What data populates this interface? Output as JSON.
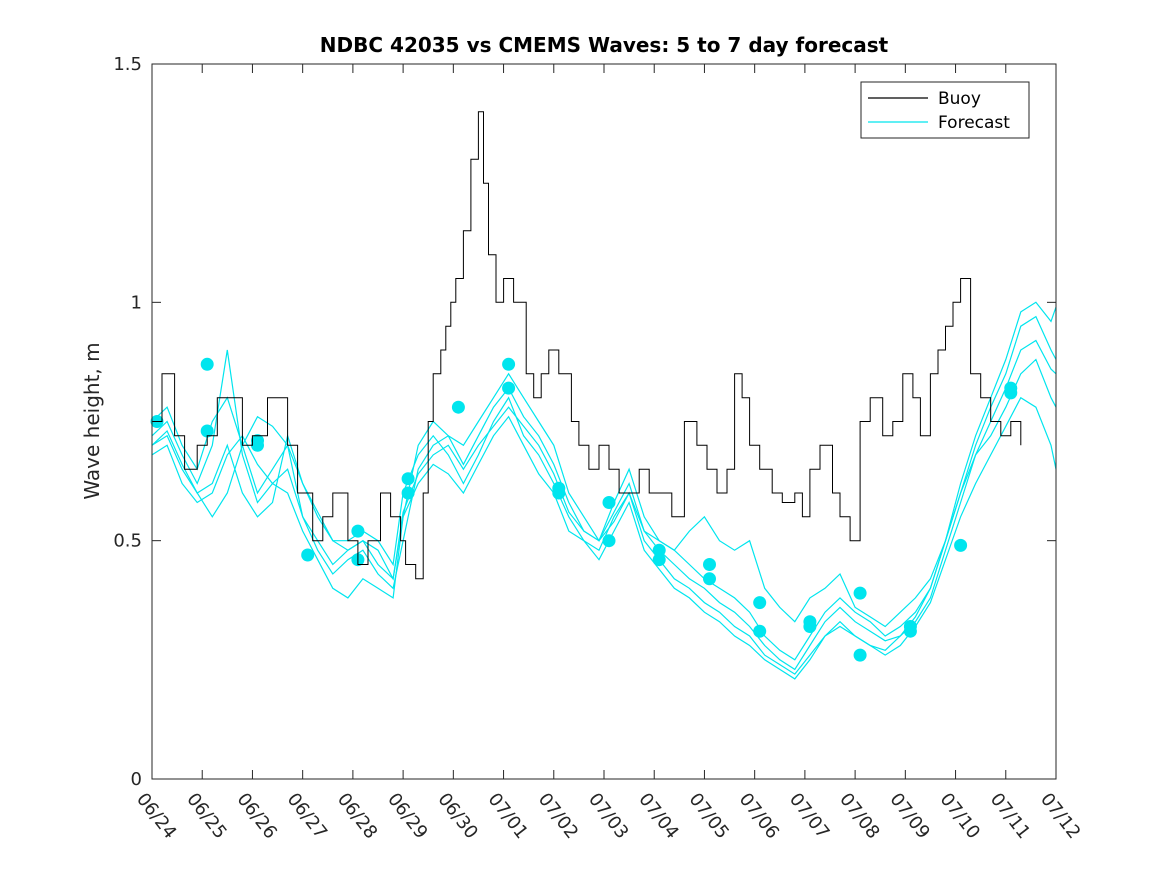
{
  "colors": {
    "buoy": "#000000",
    "forecast": "#00e5ee",
    "axis": "#262626",
    "background": "#ffffff"
  },
  "chart_data": {
    "type": "line",
    "title": "NDBC 42035 vs CMEMS Waves: 5 to 7 day forecast",
    "xlabel": "",
    "ylabel": "Wave height, m",
    "x_unit": "day (0 = 06/24)",
    "xlim": [
      0,
      18
    ],
    "ylim": [
      0,
      1.5
    ],
    "x_ticks": [
      0,
      1,
      2,
      3,
      4,
      5,
      6,
      7,
      8,
      9,
      10,
      11,
      12,
      13,
      14,
      15,
      16,
      17,
      18
    ],
    "x_tick_labels": [
      "06/24",
      "06/25",
      "06/26",
      "06/27",
      "06/28",
      "06/29",
      "06/30",
      "07/01",
      "07/02",
      "07/03",
      "07/04",
      "07/05",
      "07/06",
      "07/07",
      "07/08",
      "07/09",
      "07/10",
      "07/11",
      "07/12"
    ],
    "y_ticks": [
      0,
      0.5,
      1,
      1.5
    ],
    "y_tick_labels": [
      "0",
      "0.5",
      "1",
      "1.5"
    ],
    "grid": false,
    "legend": {
      "position": "top-right",
      "entries": [
        "Buoy",
        "Forecast"
      ]
    },
    "buoy": {
      "name": "Buoy",
      "x": [
        0,
        0.2,
        0.45,
        0.65,
        0.9,
        1.1,
        1.3,
        1.6,
        1.8,
        2.0,
        2.3,
        2.7,
        2.9,
        3.2,
        3.4,
        3.6,
        3.9,
        4.1,
        4.3,
        4.55,
        4.75,
        4.95,
        5.05,
        5.25,
        5.4,
        5.5,
        5.6,
        5.75,
        5.85,
        5.95,
        6.05,
        6.2,
        6.35,
        6.5,
        6.6,
        6.7,
        6.85,
        7.0,
        7.2,
        7.45,
        7.6,
        7.75,
        7.9,
        8.1,
        8.35,
        8.5,
        8.7,
        8.9,
        9.1,
        9.3,
        9.5,
        9.7,
        9.9,
        10.15,
        10.35,
        10.6,
        10.85,
        11.05,
        11.25,
        11.45,
        11.6,
        11.75,
        11.9,
        12.1,
        12.35,
        12.55,
        12.8,
        12.95,
        13.1,
        13.3,
        13.55,
        13.7,
        13.9,
        14.1,
        14.3,
        14.55,
        14.75,
        14.95,
        15.15,
        15.3,
        15.5,
        15.65,
        15.8,
        15.95,
        16.1,
        16.3,
        16.5,
        16.7,
        16.9,
        17.1,
        17.3
      ],
      "y": [
        0.75,
        0.85,
        0.72,
        0.65,
        0.7,
        0.72,
        0.8,
        0.8,
        0.7,
        0.72,
        0.8,
        0.7,
        0.6,
        0.5,
        0.55,
        0.6,
        0.5,
        0.45,
        0.5,
        0.6,
        0.55,
        0.5,
        0.45,
        0.42,
        0.6,
        0.75,
        0.85,
        0.9,
        0.95,
        1.0,
        1.05,
        1.15,
        1.3,
        1.4,
        1.25,
        1.1,
        1.0,
        1.05,
        1.0,
        0.85,
        0.8,
        0.85,
        0.9,
        0.85,
        0.75,
        0.7,
        0.65,
        0.7,
        0.65,
        0.6,
        0.6,
        0.65,
        0.6,
        0.6,
        0.55,
        0.75,
        0.7,
        0.65,
        0.6,
        0.65,
        0.85,
        0.8,
        0.7,
        0.65,
        0.6,
        0.58,
        0.6,
        0.55,
        0.65,
        0.7,
        0.6,
        0.55,
        0.5,
        0.75,
        0.8,
        0.72,
        0.75,
        0.85,
        0.8,
        0.72,
        0.85,
        0.9,
        0.95,
        1.0,
        1.05,
        0.85,
        0.8,
        0.75,
        0.72,
        0.75,
        0.7
      ]
    },
    "forecast_lines": [
      {
        "name": "Forecast",
        "x": [
          0,
          0.3,
          0.6,
          0.9,
          1.2,
          1.5,
          1.8,
          2.1,
          2.4,
          2.7,
          3.0,
          3.3,
          3.6,
          3.9,
          4.2,
          4.5,
          4.8,
          5.0,
          5.3,
          5.6,
          5.9,
          6.2,
          6.5,
          6.8,
          7.1,
          7.4,
          7.7,
          8.0,
          8.3,
          8.6,
          8.9,
          9.2,
          9.5,
          9.8,
          10.1,
          10.4,
          10.7,
          11.0,
          11.3,
          11.6,
          11.9,
          12.2,
          12.5,
          12.8,
          13.1,
          13.4,
          13.7,
          14.0,
          14.3,
          14.6,
          14.9,
          15.2,
          15.5,
          15.8,
          16.1,
          16.4,
          16.7,
          17.0,
          17.3,
          17.6,
          17.9,
          18.0
        ],
        "y": [
          0.75,
          0.78,
          0.7,
          0.65,
          0.75,
          0.8,
          0.7,
          0.6,
          0.65,
          0.7,
          0.55,
          0.5,
          0.45,
          0.48,
          0.5,
          0.45,
          0.42,
          0.55,
          0.7,
          0.75,
          0.72,
          0.7,
          0.75,
          0.8,
          0.85,
          0.8,
          0.75,
          0.7,
          0.6,
          0.55,
          0.5,
          0.58,
          0.65,
          0.55,
          0.5,
          0.48,
          0.45,
          0.42,
          0.4,
          0.38,
          0.35,
          0.3,
          0.27,
          0.25,
          0.3,
          0.35,
          0.38,
          0.35,
          0.33,
          0.3,
          0.32,
          0.35,
          0.4,
          0.5,
          0.6,
          0.7,
          0.78,
          0.85,
          0.95,
          0.97,
          0.9,
          0.88
        ]
      },
      {
        "name": "Forecast",
        "x": [
          0,
          0.3,
          0.6,
          0.9,
          1.2,
          1.5,
          1.8,
          2.1,
          2.4,
          2.7,
          3.0,
          3.3,
          3.6,
          3.9,
          4.2,
          4.5,
          4.8,
          5.0,
          5.3,
          5.6,
          5.9,
          6.2,
          6.5,
          6.8,
          7.1,
          7.4,
          7.7,
          8.0,
          8.3,
          8.6,
          8.9,
          9.2,
          9.5,
          9.8,
          10.1,
          10.4,
          10.7,
          11.0,
          11.3,
          11.6,
          11.9,
          12.2,
          12.5,
          12.8,
          13.1,
          13.4,
          13.7,
          14.0,
          14.3,
          14.6,
          14.9,
          15.2,
          15.5,
          15.8,
          16.1,
          16.4,
          16.7,
          17.0,
          17.3,
          17.6,
          17.9,
          18.0
        ],
        "y": [
          0.72,
          0.75,
          0.68,
          0.62,
          0.7,
          0.9,
          0.68,
          0.58,
          0.62,
          0.65,
          0.55,
          0.48,
          0.43,
          0.46,
          0.48,
          0.43,
          0.4,
          0.5,
          0.65,
          0.7,
          0.72,
          0.66,
          0.72,
          0.78,
          0.82,
          0.76,
          0.72,
          0.66,
          0.58,
          0.52,
          0.5,
          0.56,
          0.62,
          0.52,
          0.48,
          0.45,
          0.42,
          0.4,
          0.37,
          0.35,
          0.32,
          0.28,
          0.25,
          0.23,
          0.28,
          0.33,
          0.36,
          0.33,
          0.31,
          0.29,
          0.3,
          0.33,
          0.38,
          0.48,
          0.58,
          0.68,
          0.75,
          0.82,
          0.9,
          0.92,
          0.86,
          0.85
        ]
      },
      {
        "name": "Forecast",
        "x": [
          0,
          0.3,
          0.6,
          0.9,
          1.2,
          1.5,
          1.8,
          2.1,
          2.4,
          2.7,
          3.0,
          3.3,
          3.6,
          3.9,
          4.2,
          4.5,
          4.8,
          5.0,
          5.3,
          5.6,
          5.9,
          6.2,
          6.5,
          6.8,
          7.1,
          7.4,
          7.7,
          8.0,
          8.3,
          8.6,
          8.9,
          9.2,
          9.5,
          9.8,
          10.1,
          10.4,
          10.7,
          11.0,
          11.3,
          11.6,
          11.9,
          12.2,
          12.5,
          12.8,
          13.1,
          13.4,
          13.7,
          14.0,
          14.3,
          14.6,
          14.9,
          15.2,
          15.5,
          15.8,
          16.1,
          16.4,
          16.7,
          17.0,
          17.3,
          17.6,
          17.9,
          18.0
        ],
        "y": [
          0.7,
          0.72,
          0.65,
          0.6,
          0.62,
          0.7,
          0.6,
          0.55,
          0.58,
          0.72,
          0.62,
          0.55,
          0.5,
          0.5,
          0.52,
          0.5,
          0.45,
          0.6,
          0.68,
          0.72,
          0.68,
          0.62,
          0.68,
          0.75,
          0.8,
          0.72,
          0.68,
          0.62,
          0.55,
          0.5,
          0.48,
          0.55,
          0.6,
          0.5,
          0.46,
          0.42,
          0.4,
          0.37,
          0.35,
          0.32,
          0.3,
          0.26,
          0.24,
          0.22,
          0.26,
          0.3,
          0.33,
          0.3,
          0.28,
          0.27,
          0.3,
          0.34,
          0.4,
          0.5,
          0.6,
          0.68,
          0.72,
          0.78,
          0.85,
          0.88,
          0.8,
          0.78
        ]
      },
      {
        "name": "Forecast",
        "x": [
          0,
          0.3,
          0.6,
          0.9,
          1.2,
          1.5,
          1.8,
          2.1,
          2.4,
          2.7,
          3.0,
          3.3,
          3.6,
          3.9,
          4.2,
          4.5,
          4.8,
          5.0,
          5.3,
          5.6,
          5.9,
          6.2,
          6.5,
          6.8,
          7.1,
          7.4,
          7.7,
          8.0,
          8.3,
          8.6,
          8.9,
          9.2,
          9.5,
          9.8,
          10.1,
          10.4,
          10.7,
          11.0,
          11.3,
          11.6,
          11.9,
          12.2,
          12.5,
          12.8,
          13.1,
          13.4,
          13.7,
          14.0,
          14.3,
          14.6,
          14.9,
          15.2,
          15.5,
          15.8,
          16.1,
          16.4,
          16.7,
          17.0,
          17.3,
          17.6,
          17.9,
          18.0
        ],
        "y": [
          0.68,
          0.7,
          0.62,
          0.58,
          0.6,
          0.68,
          0.72,
          0.66,
          0.62,
          0.6,
          0.52,
          0.46,
          0.4,
          0.38,
          0.42,
          0.4,
          0.38,
          0.55,
          0.62,
          0.66,
          0.64,
          0.6,
          0.66,
          0.72,
          0.76,
          0.7,
          0.64,
          0.6,
          0.52,
          0.5,
          0.46,
          0.52,
          0.58,
          0.48,
          0.44,
          0.4,
          0.38,
          0.35,
          0.33,
          0.3,
          0.28,
          0.25,
          0.23,
          0.21,
          0.25,
          0.3,
          0.32,
          0.3,
          0.28,
          0.26,
          0.28,
          0.32,
          0.37,
          0.46,
          0.55,
          0.62,
          0.68,
          0.74,
          0.8,
          0.78,
          0.7,
          0.65
        ]
      },
      {
        "name": "Forecast",
        "x": [
          0,
          0.3,
          0.6,
          0.9,
          1.2,
          1.5,
          1.8,
          2.1,
          2.4,
          2.7,
          3.0,
          3.3,
          3.6,
          3.9,
          4.2,
          4.5,
          4.8,
          5.0,
          5.3,
          5.6,
          5.9,
          6.2,
          6.5,
          6.8,
          7.1,
          7.4,
          7.7,
          8.0,
          8.3,
          8.6,
          8.9,
          9.2,
          9.5,
          9.8,
          10.1,
          10.4,
          10.7,
          11.0,
          11.3,
          11.6,
          11.9,
          12.2,
          12.5,
          12.8,
          13.1,
          13.4,
          13.7,
          14.0,
          14.3,
          14.6,
          14.9,
          15.2,
          15.5,
          15.8,
          16.1,
          16.4,
          16.7,
          17.0,
          17.3,
          17.6,
          17.9,
          18.0
        ],
        "y": [
          0.7,
          0.73,
          0.66,
          0.6,
          0.55,
          0.6,
          0.7,
          0.76,
          0.74,
          0.7,
          0.62,
          0.56,
          0.5,
          0.48,
          0.5,
          0.48,
          0.42,
          0.56,
          0.64,
          0.68,
          0.7,
          0.65,
          0.7,
          0.74,
          0.78,
          0.74,
          0.7,
          0.64,
          0.56,
          0.52,
          0.5,
          0.54,
          0.6,
          0.52,
          0.5,
          0.48,
          0.52,
          0.55,
          0.5,
          0.48,
          0.5,
          0.4,
          0.36,
          0.33,
          0.38,
          0.4,
          0.43,
          0.36,
          0.34,
          0.32,
          0.35,
          0.38,
          0.42,
          0.5,
          0.62,
          0.72,
          0.8,
          0.88,
          0.98,
          1.0,
          0.96,
          0.99
        ]
      }
    ],
    "forecast_markers": {
      "name": "Forecast",
      "x": [
        0.1,
        1.1,
        1.1,
        2.1,
        2.1,
        3.1,
        4.1,
        4.1,
        5.1,
        5.1,
        6.1,
        7.1,
        7.1,
        8.1,
        8.1,
        9.1,
        9.1,
        10.1,
        10.1,
        11.1,
        11.1,
        12.1,
        12.1,
        13.1,
        13.1,
        14.1,
        14.1,
        15.1,
        15.1,
        16.1,
        17.1,
        17.1
      ],
      "y": [
        0.75,
        0.87,
        0.73,
        0.71,
        0.7,
        0.47,
        0.52,
        0.46,
        0.63,
        0.6,
        0.78,
        0.87,
        0.82,
        0.61,
        0.6,
        0.58,
        0.5,
        0.48,
        0.46,
        0.45,
        0.42,
        0.37,
        0.31,
        0.33,
        0.32,
        0.39,
        0.26,
        0.32,
        0.31,
        0.49,
        0.82,
        0.81
      ]
    }
  }
}
